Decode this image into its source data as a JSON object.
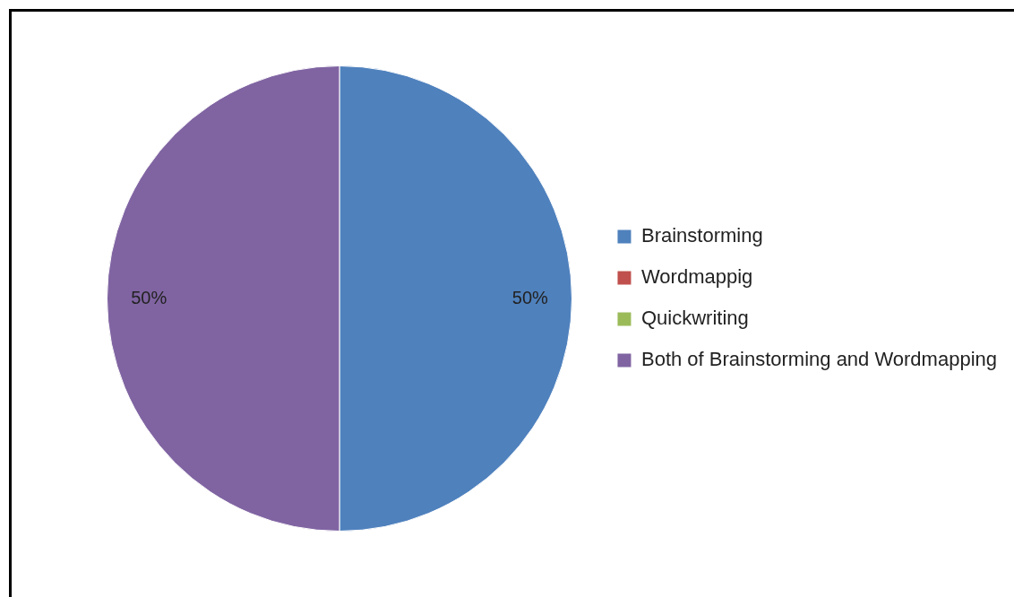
{
  "chart_data": {
    "type": "pie",
    "categories": [
      "Brainstorming",
      "Wordmappig",
      "Quickwriting",
      "Both of Brainstorming and Wordmapping"
    ],
    "values": [
      50,
      0,
      0,
      50
    ],
    "colors": [
      "#4f81bd",
      "#c0504d",
      "#9bbb59",
      "#8064a2"
    ],
    "value_labels": [
      "50%",
      null,
      null,
      "50%"
    ],
    "legend": "right"
  }
}
